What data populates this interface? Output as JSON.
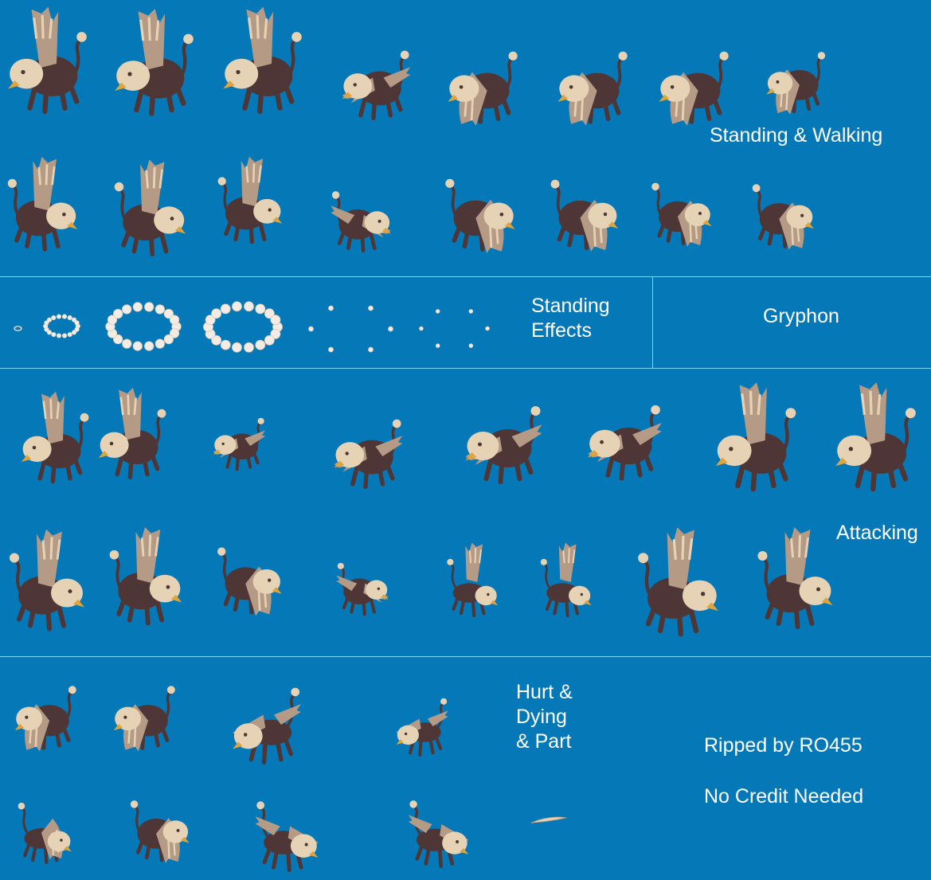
{
  "sheet": {
    "title": "Gryphon",
    "colors": {
      "background": "#0578b8",
      "divider": "#7fd8ff",
      "text": "#ffffff",
      "feather_light": "#e6d2b4",
      "feather_mid": "#b59a86",
      "body_dark": "#4e3637",
      "beak": "#e0a53a",
      "smoke": "#f3ece4"
    }
  },
  "sections": {
    "standing_walking": {
      "label": "Standing & Walking",
      "frames_row1": 8,
      "frames_row2": 8
    },
    "standing_effects": {
      "label": "Standing\nEffects",
      "frames": 6
    },
    "attacking": {
      "label": "Attacking",
      "frames_row1": 8,
      "frames_row2": 8
    },
    "hurt_dying": {
      "label": "Hurt &\nDying\n& Part",
      "frames_row1": 4,
      "frames_row2": 5
    }
  },
  "credits": {
    "ripped_by": "Ripped by RO455",
    "credit_note": "No Credit Needed"
  },
  "icons": {
    "sprite": "gryphon-sprite-icon",
    "effect": "smoke-ring-icon",
    "feather": "feather-part-icon"
  }
}
